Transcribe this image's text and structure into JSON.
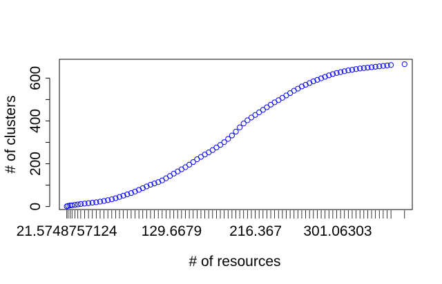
{
  "chart_data": {
    "type": "scatter",
    "title": "",
    "xlabel": "# of resources",
    "ylabel": "# of clusters",
    "x_tick_labels": [
      {
        "value": 21.5748757124,
        "label": "21.5748757124"
      },
      {
        "value": 129.6679,
        "label": "129.6679"
      },
      {
        "value": 216.367,
        "label": "216.367"
      },
      {
        "value": 301.06303,
        "label": "301.06303"
      }
    ],
    "y_ticks": [
      0,
      100,
      200,
      300,
      400,
      500,
      600
    ],
    "y_tick_labels": [
      {
        "value": 0,
        "label": "0"
      },
      {
        "value": 200,
        "label": "200"
      },
      {
        "value": 400,
        "label": "400"
      },
      {
        "value": 600,
        "label": "600"
      }
    ],
    "xlim": [
      14,
      378
    ],
    "ylim": [
      -14,
      688
    ],
    "marker_color": "#0000ff",
    "rug": true,
    "series": [
      {
        "points": [
          [
            21.6,
            1
          ],
          [
            23,
            3
          ],
          [
            25,
            5
          ],
          [
            27,
            6
          ],
          [
            30,
            8
          ],
          [
            33,
            10
          ],
          [
            36,
            12
          ],
          [
            40,
            14
          ],
          [
            44,
            16
          ],
          [
            48,
            18
          ],
          [
            52,
            20
          ],
          [
            56,
            23
          ],
          [
            60,
            26
          ],
          [
            64,
            30
          ],
          [
            68,
            34
          ],
          [
            72,
            39
          ],
          [
            76,
            45
          ],
          [
            80,
            51
          ],
          [
            84,
            57
          ],
          [
            88,
            63
          ],
          [
            92,
            70
          ],
          [
            96,
            78
          ],
          [
            100,
            86
          ],
          [
            104,
            94
          ],
          [
            108,
            102
          ],
          [
            112,
            108
          ],
          [
            116,
            114
          ],
          [
            120,
            122
          ],
          [
            124,
            132
          ],
          [
            128,
            143
          ],
          [
            132,
            154
          ],
          [
            136,
            164
          ],
          [
            140,
            174
          ],
          [
            144,
            184
          ],
          [
            148,
            196
          ],
          [
            152,
            208
          ],
          [
            156,
            221
          ],
          [
            160,
            232
          ],
          [
            164,
            243
          ],
          [
            168,
            253
          ],
          [
            172,
            264
          ],
          [
            176,
            276
          ],
          [
            180,
            288
          ],
          [
            184,
            301
          ],
          [
            188,
            316
          ],
          [
            192,
            332
          ],
          [
            196,
            350
          ],
          [
            200,
            370
          ],
          [
            204,
            388
          ],
          [
            208,
            403
          ],
          [
            212,
            416
          ],
          [
            216,
            428
          ],
          [
            220,
            440
          ],
          [
            224,
            452
          ],
          [
            228,
            464
          ],
          [
            232,
            476
          ],
          [
            236,
            487
          ],
          [
            240,
            497
          ],
          [
            244,
            508
          ],
          [
            248,
            519
          ],
          [
            252,
            530
          ],
          [
            256,
            541
          ],
          [
            260,
            551
          ],
          [
            264,
            561
          ],
          [
            268,
            569
          ],
          [
            272,
            577
          ],
          [
            276,
            585
          ],
          [
            280,
            592
          ],
          [
            284,
            599
          ],
          [
            288,
            606
          ],
          [
            292,
            613
          ],
          [
            296,
            619
          ],
          [
            300,
            624
          ],
          [
            304,
            628
          ],
          [
            308,
            632
          ],
          [
            312,
            636
          ],
          [
            316,
            639
          ],
          [
            320,
            642
          ],
          [
            324,
            645
          ],
          [
            328,
            647
          ],
          [
            332,
            649
          ],
          [
            336,
            651
          ],
          [
            340,
            653
          ],
          [
            344,
            655
          ],
          [
            348,
            657
          ],
          [
            352,
            659
          ],
          [
            356,
            661
          ],
          [
            370,
            665
          ]
        ]
      }
    ]
  }
}
